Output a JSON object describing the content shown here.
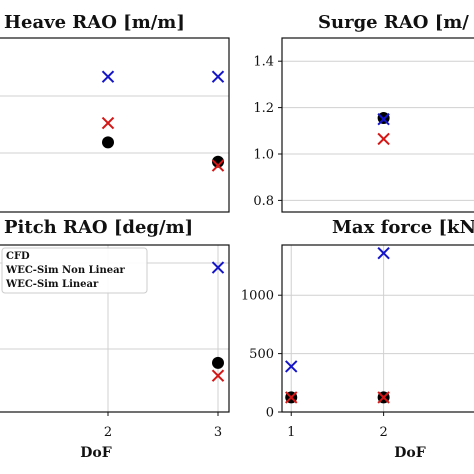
{
  "chart_data": [
    {
      "id": "heave",
      "type": "scatter",
      "title": "Heave RAO [m/m]",
      "xlabel": "",
      "xlim": [
        1.0,
        3.1
      ],
      "ylim": [
        0.65,
        1.1
      ],
      "xticks": [],
      "yticks": [],
      "grid": true,
      "series": [
        {
          "name": "CFD",
          "marker": "circle",
          "color": "#000000",
          "x": [
            2,
            3
          ],
          "y": [
            0.83,
            0.78
          ]
        },
        {
          "name": "WEC-Sim Non Linear",
          "marker": "x",
          "color": "#1515c8",
          "x": [
            2,
            3
          ],
          "y": [
            1.0,
            1.0
          ]
        },
        {
          "name": "WEC-Sim Linear",
          "marker": "x",
          "color": "#d41616",
          "x": [
            2,
            3
          ],
          "y": [
            0.88,
            0.77
          ]
        }
      ]
    },
    {
      "id": "surge",
      "type": "scatter",
      "title": "Surge RAO [m/",
      "xlabel": "",
      "xlim": [
        0.9,
        3.0
      ],
      "ylim": [
        0.75,
        1.5
      ],
      "xticks": [],
      "yticks": [
        "0.8",
        "1.0",
        "1.2",
        "1.4"
      ],
      "grid": true,
      "series": [
        {
          "name": "CFD",
          "marker": "circle",
          "color": "#000000",
          "x": [
            2
          ],
          "y": [
            1.155
          ]
        },
        {
          "name": "WEC-Sim Non Linear",
          "marker": "x",
          "color": "#1515c8",
          "x": [
            2
          ],
          "y": [
            1.15
          ]
        },
        {
          "name": "WEC-Sim Linear",
          "marker": "x",
          "color": "#d41616",
          "x": [
            2
          ],
          "y": [
            1.065
          ]
        }
      ]
    },
    {
      "id": "pitch",
      "type": "scatter",
      "title": "Pitch RAO [deg/m]",
      "xlabel": "DoF",
      "xlim": [
        1.0,
        3.1
      ],
      "ylim": [
        0,
        170
      ],
      "xticks": [
        "2",
        "3"
      ],
      "yticks": [],
      "grid": true,
      "legend": {
        "position": "upper-left",
        "entries": [
          "CFD",
          "WEC-Sim Non Linear",
          "WEC-Sim Linear"
        ]
      },
      "series": [
        {
          "name": "CFD",
          "marker": "circle",
          "color": "#000000",
          "x": [
            3
          ],
          "y": [
            50
          ]
        },
        {
          "name": "WEC-Sim Non Linear",
          "marker": "x",
          "color": "#1515c8",
          "x": [
            3
          ],
          "y": [
            147
          ]
        },
        {
          "name": "WEC-Sim Linear",
          "marker": "x",
          "color": "#d41616",
          "x": [
            3
          ],
          "y": [
            37
          ]
        }
      ]
    },
    {
      "id": "maxforce",
      "type": "scatter",
      "title": "Max force [kN",
      "xlabel": "DoF",
      "xlim": [
        0.9,
        3.0
      ],
      "ylim": [
        0,
        1430
      ],
      "xticks": [
        "1",
        "2"
      ],
      "yticks": [
        "0",
        "500",
        "1000"
      ],
      "grid": true,
      "series": [
        {
          "name": "CFD",
          "marker": "circle",
          "color": "#000000",
          "x": [
            1,
            2
          ],
          "y": [
            125,
            125
          ]
        },
        {
          "name": "WEC-Sim Non Linear",
          "marker": "x",
          "color": "#1515c8",
          "x": [
            1,
            2
          ],
          "y": [
            390,
            1360
          ]
        },
        {
          "name": "WEC-Sim Linear",
          "marker": "x",
          "color": "#d41616",
          "x": [
            1,
            2
          ],
          "y": [
            125,
            125
          ]
        }
      ]
    }
  ]
}
